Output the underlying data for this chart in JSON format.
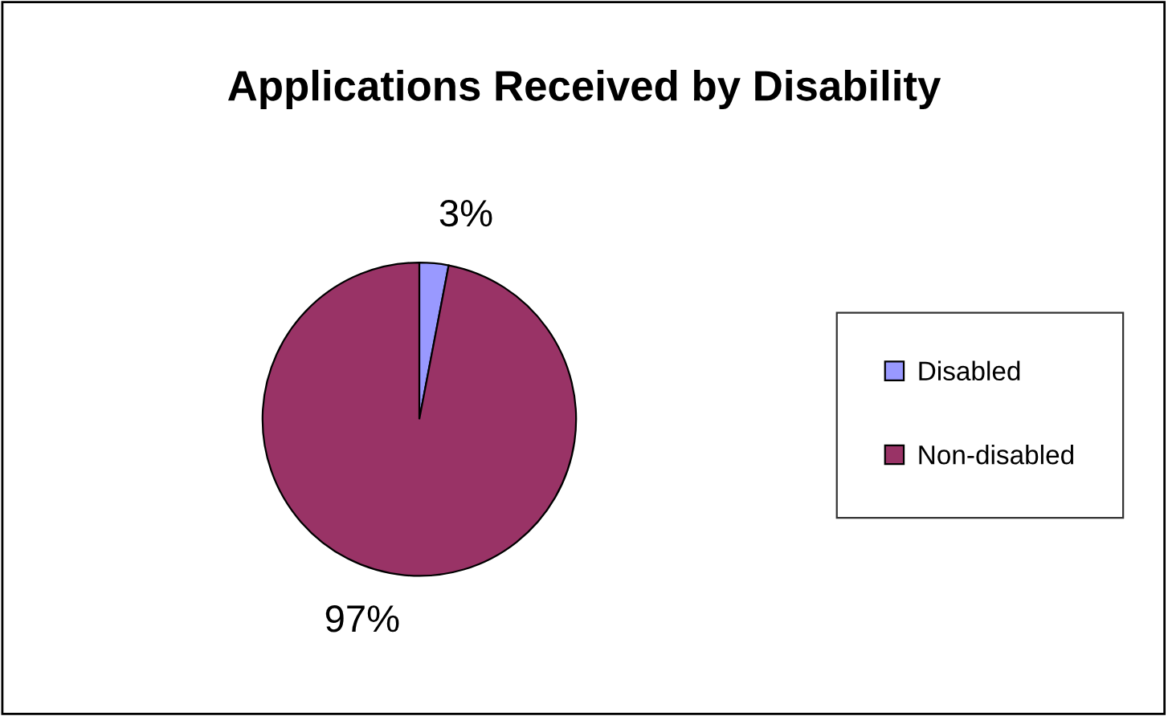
{
  "chart_data": {
    "type": "pie",
    "title": "Applications Received by Disability",
    "categories": [
      "Disabled",
      "Non-disabled"
    ],
    "values": [
      3,
      97
    ],
    "colors": [
      "#9999ff",
      "#993366"
    ],
    "value_labels": [
      "3%",
      "97%"
    ],
    "legend": "right"
  }
}
